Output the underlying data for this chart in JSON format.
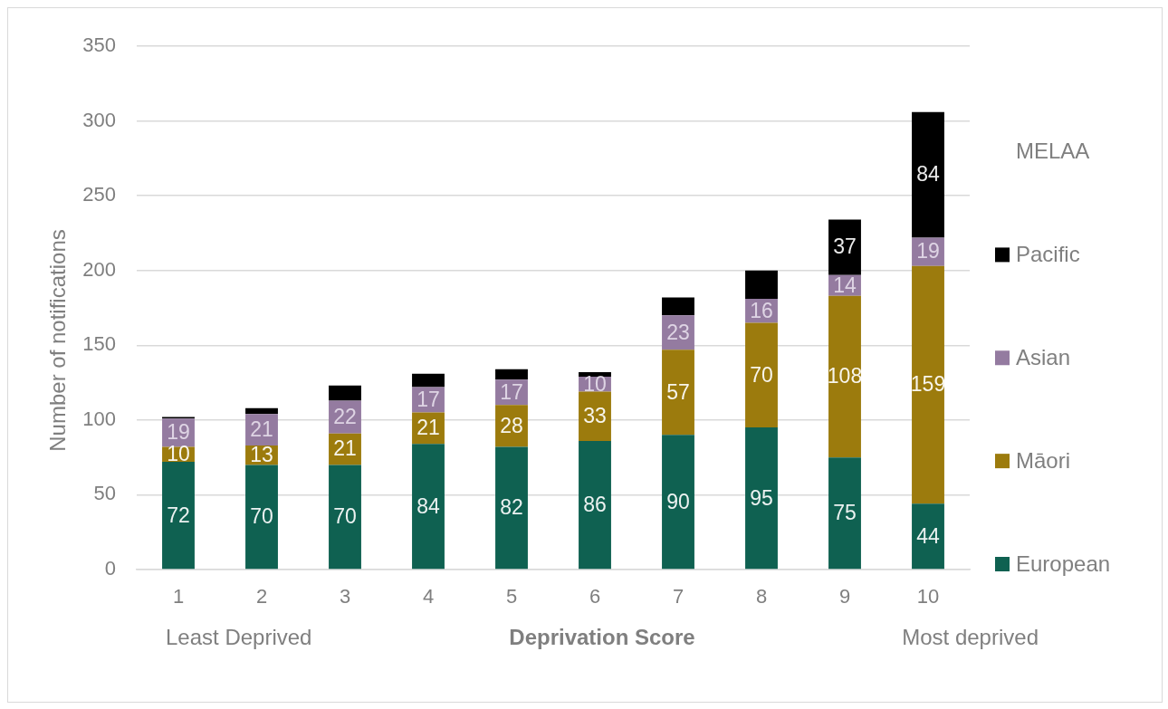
{
  "chart_data": {
    "type": "bar",
    "stacked": true,
    "xlabel": "Deprivation Score",
    "ylabel": "Number of notifications",
    "categories": [
      "1",
      "2",
      "3",
      "4",
      "5",
      "6",
      "7",
      "8",
      "9",
      "10"
    ],
    "series": [
      {
        "name": "European",
        "color": "#0f6151",
        "values": [
          72,
          70,
          70,
          84,
          82,
          86,
          90,
          95,
          75,
          44
        ],
        "value_labels": [
          "72",
          "70",
          "70",
          "84",
          "82",
          "86",
          "90",
          "95",
          "75",
          "44"
        ]
      },
      {
        "name": "Māori",
        "color": "#9c7b0d",
        "values": [
          10,
          13,
          21,
          21,
          28,
          33,
          57,
          70,
          108,
          159
        ],
        "value_labels": [
          "10",
          "13",
          "21",
          "21",
          "28",
          "33",
          "57",
          "70",
          "108",
          "159"
        ]
      },
      {
        "name": "Asian",
        "color": "#947ba0",
        "values": [
          19,
          21,
          22,
          17,
          17,
          10,
          23,
          16,
          14,
          19
        ],
        "value_labels": [
          "19",
          "21",
          "22",
          "17",
          "17",
          "10",
          "23",
          "16",
          "14",
          "19"
        ]
      },
      {
        "name": "Pacific",
        "color": "#000000",
        "values": [
          1,
          4,
          10,
          9,
          7,
          3,
          12,
          19,
          37,
          84
        ],
        "value_labels": [
          null,
          null,
          null,
          null,
          null,
          null,
          null,
          null,
          "37",
          "84"
        ]
      },
      {
        "name": "MELAA",
        "values": [
          null,
          null,
          null,
          null,
          null,
          null,
          null,
          null,
          null,
          null
        ]
      }
    ],
    "ylim": [
      0,
      350
    ],
    "yticks": [
      0,
      50,
      100,
      150,
      200,
      250,
      300,
      350
    ],
    "grid": "y",
    "legend": "right",
    "annotations": [
      "Least Deprived",
      "Most deprived"
    ]
  }
}
